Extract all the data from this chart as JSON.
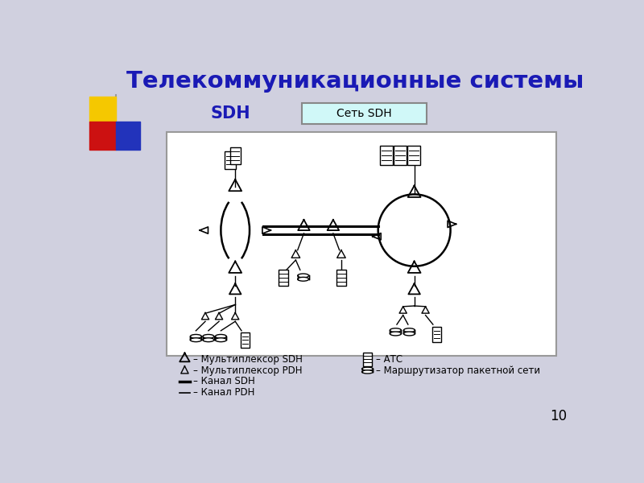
{
  "title": "Телекоммуникационные системы",
  "subtitle": "SDH",
  "box_label": "Сеть SDH",
  "title_color": "#1a1ab5",
  "subtitle_color": "#1a1ab5",
  "bg_color": "#d0d0df",
  "diagram_bg": "#ffffff",
  "box_border": "#5555aa",
  "box_fill": "#d0f8f8",
  "page_number": "10",
  "accent_yellow": "#f5c800",
  "accent_red": "#cc1111",
  "accent_blue": "#2233bb",
  "legend_sdh_mux": "– Мультиплексор SDH",
  "legend_pdh_mux": "– Мультиплексор PDH",
  "legend_sdh_ch": "– Канал SDH",
  "legend_pdh_ch": "– Канал PDH",
  "legend_atc": "– АТС",
  "legend_router": "– Маршрутизатор пакетной сети"
}
